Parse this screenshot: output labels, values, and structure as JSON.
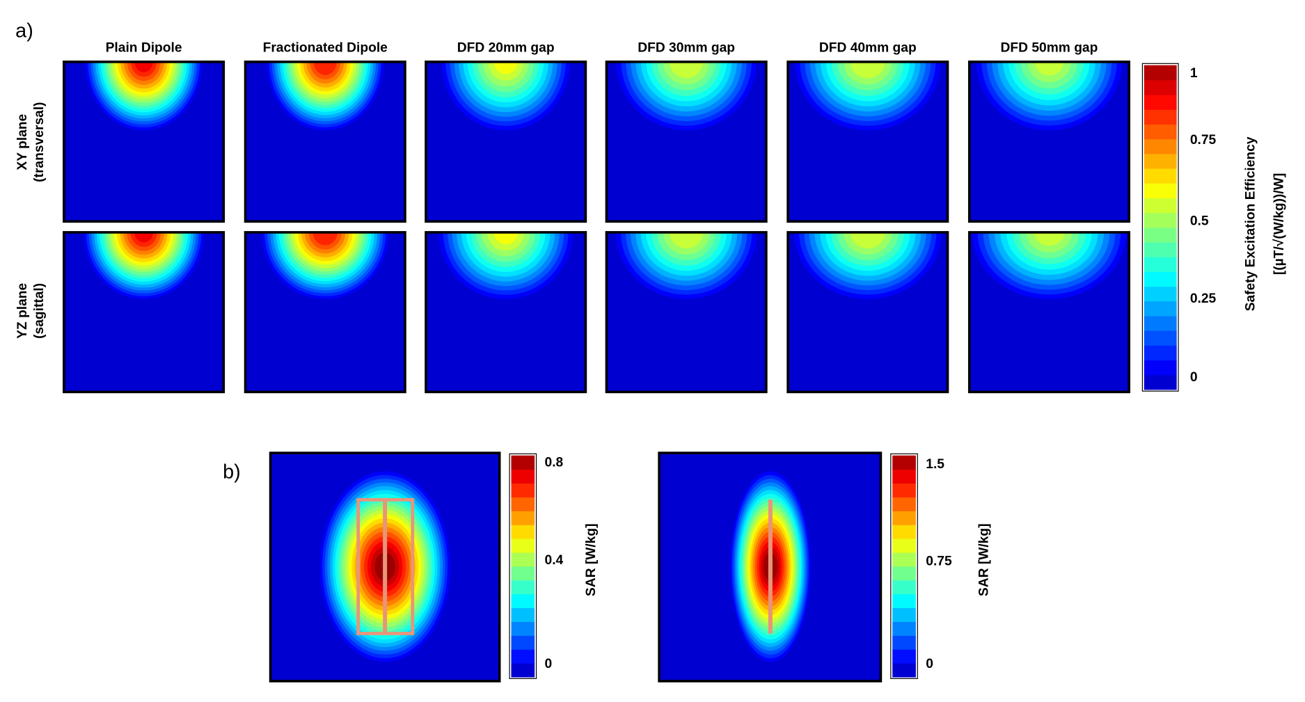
{
  "panel_a": {
    "label": "a)",
    "columns": [
      "Plain Dipole",
      "Fractionated Dipole",
      "DFD 20mm gap",
      "DFD 30mm gap",
      "DFD 40mm gap",
      "DFD 50mm gap"
    ],
    "rows": [
      [
        "XY plane",
        "(transversal)"
      ],
      [
        "YZ plane",
        "(sagittal)"
      ]
    ],
    "colorbar": {
      "ticks": [
        "1",
        "0.75",
        "0.5",
        "0.25",
        "0"
      ],
      "title": [
        "Safety Excitation Efficiency",
        "[(µT/√(W/kg))/W]"
      ]
    }
  },
  "panel_b": {
    "label": "b)",
    "maps": [
      {
        "colorbar": {
          "ticks": [
            "0.8",
            "0.4",
            "0"
          ],
          "title": "SAR [W/kg]"
        }
      },
      {
        "colorbar": {
          "ticks": [
            "1.5",
            "0.75",
            "0"
          ],
          "title": "SAR [W/kg]"
        }
      }
    ]
  }
}
